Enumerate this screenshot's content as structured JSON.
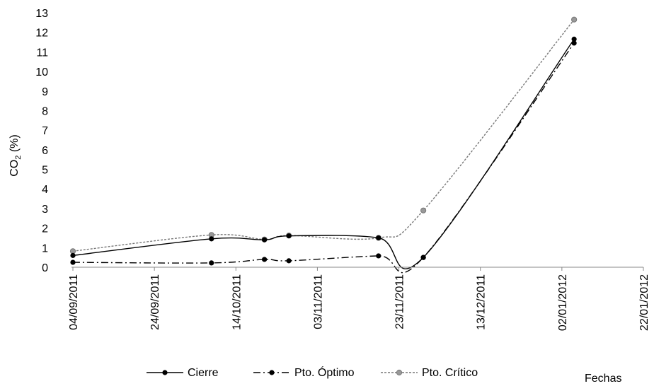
{
  "chart_data": {
    "type": "line",
    "ylabel": "CO2 (%)",
    "ylabel_main": "CO",
    "ylabel_sub": "2",
    "ylabel_tail": " (%)",
    "xlabel": "Fechas",
    "ylim": [
      0,
      13
    ],
    "yticks": [
      "0",
      "1",
      "2",
      "3",
      "4",
      "5",
      "6",
      "7",
      "8",
      "9",
      "10",
      "11",
      "12",
      "13"
    ],
    "xlim": [
      "04/09/2011",
      "22/01/2012"
    ],
    "xticks": [
      "04/09/2011",
      "24/09/2011",
      "14/10/2011",
      "03/11/2011",
      "23/11/2011",
      "13/12/2011",
      "02/01/2012",
      "22/01/2012"
    ],
    "grid": false,
    "legend_position": "bottom",
    "series": [
      {
        "name": "Cierre",
        "style": "solid",
        "color": "#000000",
        "points": [
          {
            "x": "04/09/2011",
            "y": 0.6
          },
          {
            "x": "08/10/2011",
            "y": 1.45
          },
          {
            "x": "21/10/2011",
            "y": 1.4
          },
          {
            "x": "27/10/2011",
            "y": 1.6
          },
          {
            "x": "18/11/2011",
            "y": 1.5
          },
          {
            "x": "29/11/2011",
            "y": 0.5
          },
          {
            "x": "05/01/2012",
            "y": 11.65
          }
        ]
      },
      {
        "name": "Pto. Óptimo",
        "style": "dashdot",
        "color": "#000000",
        "points": [
          {
            "x": "04/09/2011",
            "y": 0.25
          },
          {
            "x": "08/10/2011",
            "y": 0.22
          },
          {
            "x": "21/10/2011",
            "y": 0.4
          },
          {
            "x": "27/10/2011",
            "y": 0.33
          },
          {
            "x": "18/11/2011",
            "y": 0.58
          },
          {
            "x": "29/11/2011",
            "y": 0.5
          },
          {
            "x": "05/01/2012",
            "y": 11.45
          }
        ]
      },
      {
        "name": "Pto. Crítico",
        "style": "dotted",
        "color": "#777777",
        "marker_color": "#999999",
        "points": [
          {
            "x": "04/09/2011",
            "y": 0.82
          },
          {
            "x": "08/10/2011",
            "y": 1.65
          },
          {
            "x": "21/10/2011",
            "y": 1.42
          },
          {
            "x": "27/10/2011",
            "y": 1.62
          },
          {
            "x": "18/11/2011",
            "y": 1.5
          },
          {
            "x": "29/11/2011",
            "y": 2.9
          },
          {
            "x": "05/01/2012",
            "y": 12.65
          }
        ]
      }
    ]
  }
}
